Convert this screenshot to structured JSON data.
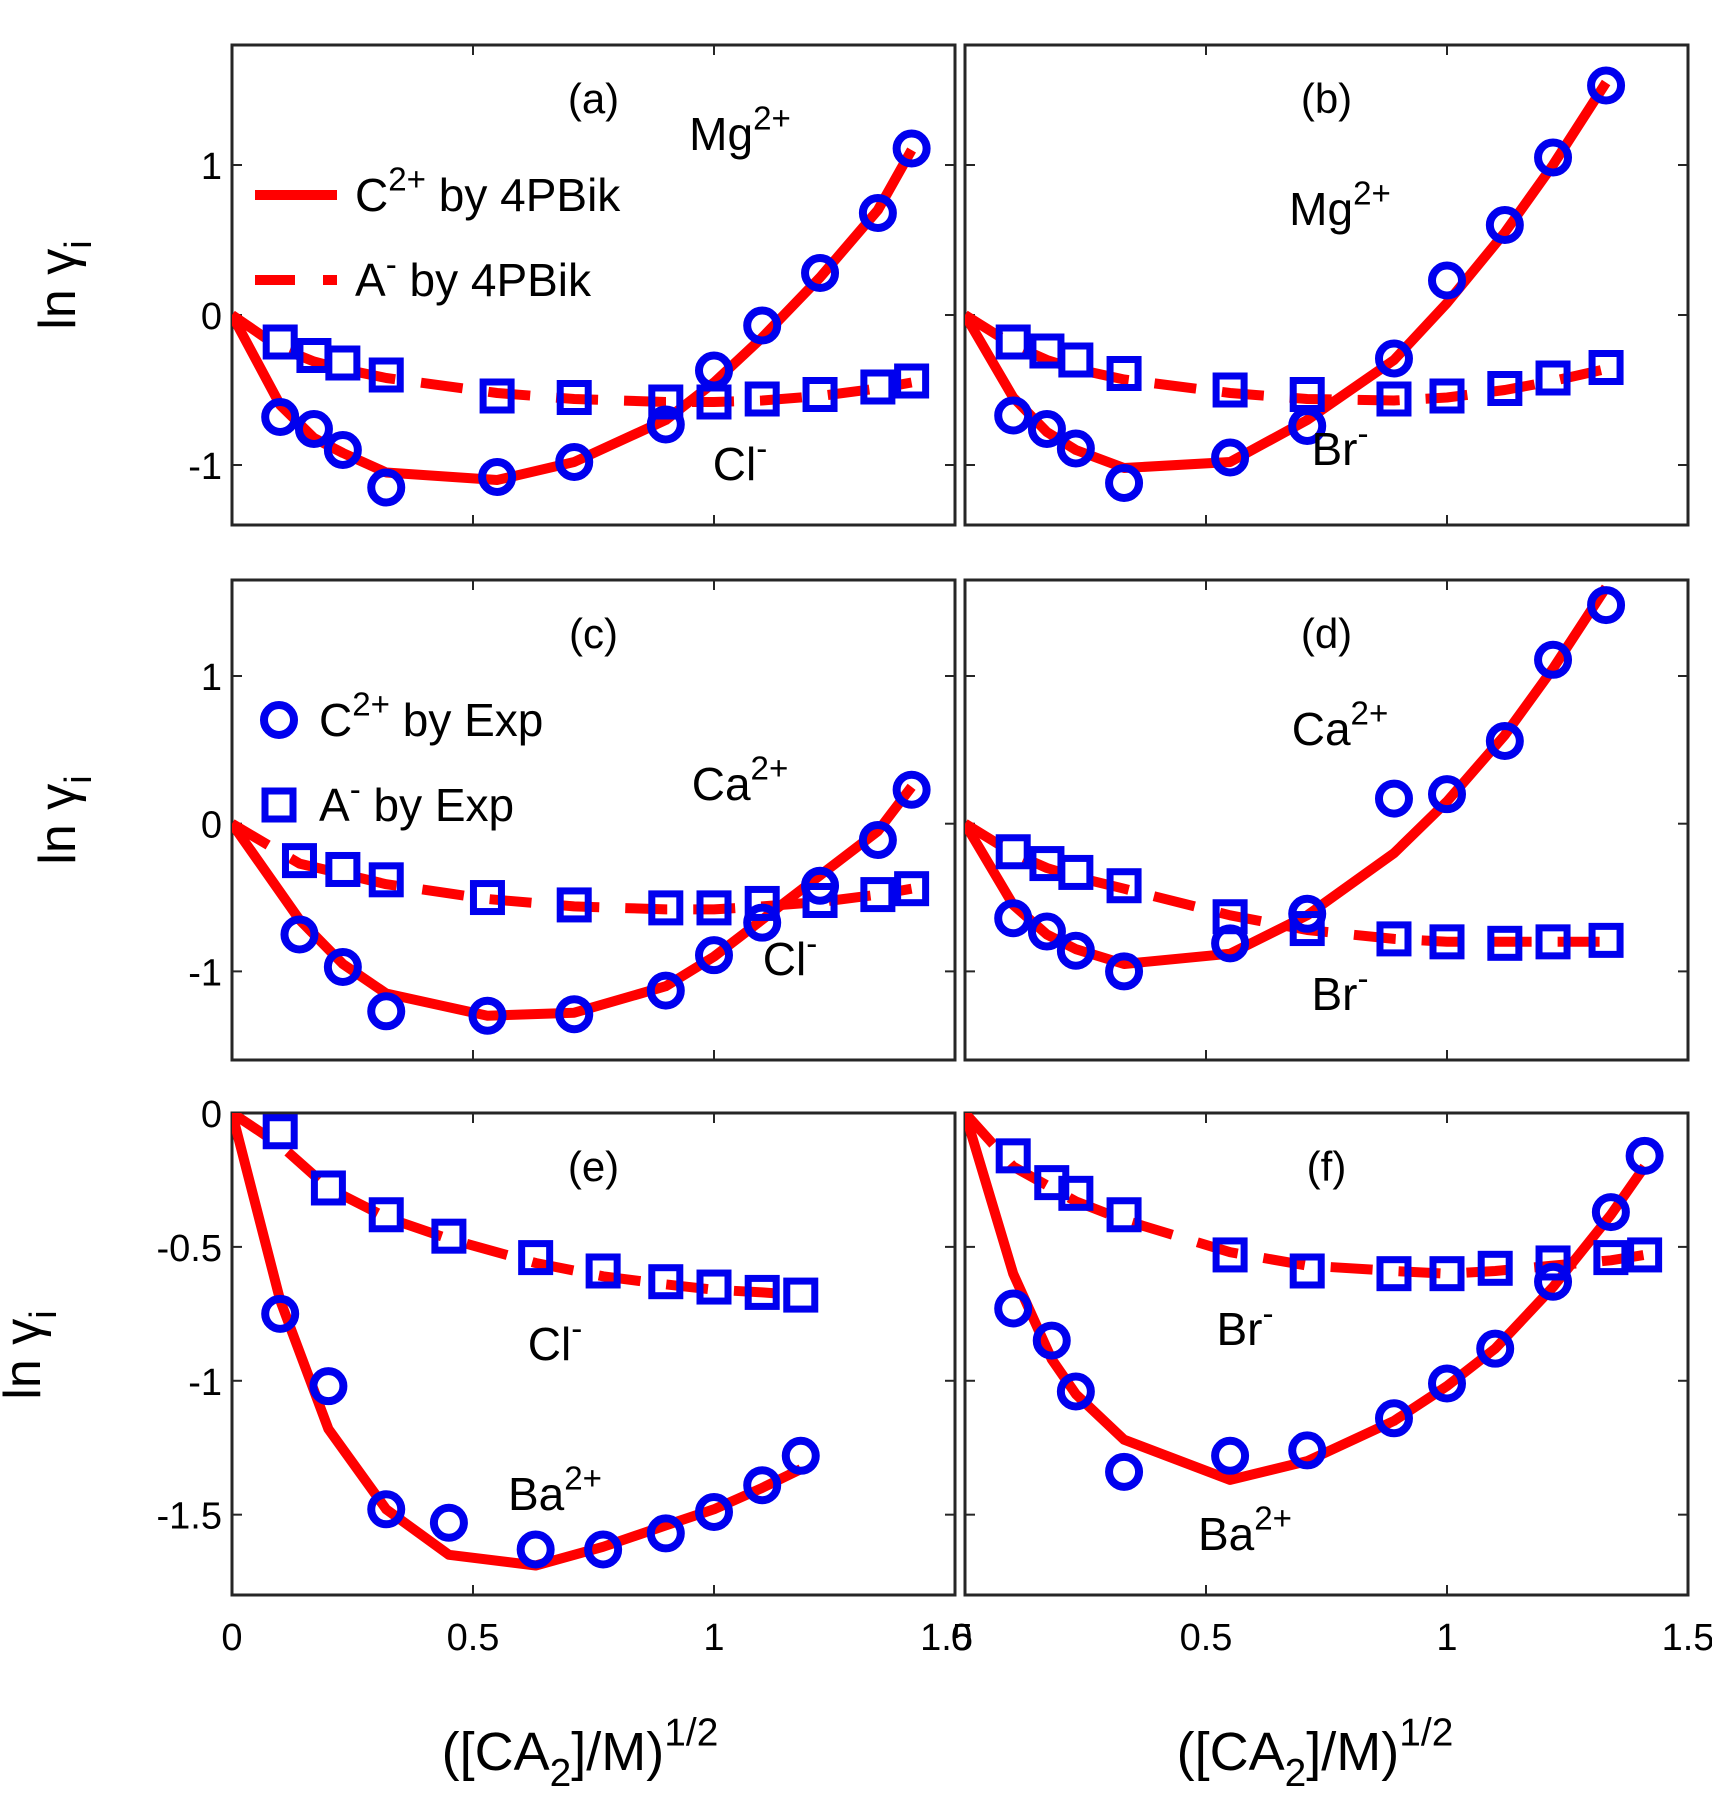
{
  "figure": {
    "xlabel": "([CA",
    "xlabel_sub": "2",
    "xlabel_tail": "]/M)",
    "xlabel_sup": "1/2",
    "ylabel": "ln γ",
    "ylabel_sub": "i"
  },
  "legends": {
    "model": [
      {
        "ion": "C",
        "charge": "2+",
        "label": " by 4PBik",
        "style": "solid"
      },
      {
        "ion": "A",
        "charge": "-",
        "label": " by 4PBik",
        "style": "dashed"
      }
    ],
    "exp": [
      {
        "ion": "C",
        "charge": "2+",
        "label": " by Exp",
        "marker": "circle"
      },
      {
        "ion": "A",
        "charge": "-",
        "label": " by Exp",
        "marker": "square"
      }
    ]
  },
  "colors": {
    "model_line": "#ff0000",
    "exp_marker": "#0000ee",
    "frame": "#262626"
  },
  "chart_data": [
    {
      "panel": "(a)",
      "type": "line+scatter",
      "xlim": [
        0,
        1.5
      ],
      "ylim": [
        -1.4,
        1.8
      ],
      "yticks": [
        "-1",
        "0",
        "1"
      ],
      "yticks_values": [
        -1,
        0,
        1
      ],
      "xticks": [],
      "legend": "model",
      "cation_label": {
        "ion": "Mg",
        "charge": "2+"
      },
      "anion_label": {
        "ion": "Cl",
        "charge": "-"
      },
      "cation_model": {
        "x": [
          0,
          0.1,
          0.17,
          0.23,
          0.32,
          0.55,
          0.71,
          0.9,
          1.0,
          1.1,
          1.22,
          1.34,
          1.41
        ],
        "y": [
          0,
          -0.6,
          -0.82,
          -0.92,
          -1.05,
          -1.1,
          -0.98,
          -0.7,
          -0.45,
          -0.15,
          0.25,
          0.7,
          1.1
        ]
      },
      "anion_model": {
        "x": [
          0,
          0.1,
          0.17,
          0.23,
          0.32,
          0.55,
          0.71,
          0.9,
          1.0,
          1.1,
          1.22,
          1.34,
          1.41
        ],
        "y": [
          0,
          -0.22,
          -0.31,
          -0.36,
          -0.42,
          -0.52,
          -0.56,
          -0.58,
          -0.58,
          -0.57,
          -0.54,
          -0.49,
          -0.45
        ]
      },
      "cation_exp": {
        "x": [
          0.1,
          0.17,
          0.23,
          0.32,
          0.55,
          0.71,
          0.9,
          1.0,
          1.1,
          1.22,
          1.34,
          1.41
        ],
        "y": [
          -0.68,
          -0.76,
          -0.9,
          -1.15,
          -1.08,
          -0.98,
          -0.73,
          -0.37,
          -0.07,
          0.28,
          0.68,
          1.11
        ]
      },
      "anion_exp": {
        "x": [
          0.1,
          0.17,
          0.23,
          0.32,
          0.55,
          0.71,
          0.9,
          1.0,
          1.1,
          1.22,
          1.34,
          1.41
        ],
        "y": [
          -0.18,
          -0.27,
          -0.32,
          -0.4,
          -0.54,
          -0.55,
          -0.58,
          -0.58,
          -0.56,
          -0.53,
          -0.48,
          -0.44
        ]
      }
    },
    {
      "panel": "(b)",
      "type": "line+scatter",
      "xlim": [
        0,
        1.5
      ],
      "ylim": [
        -1.4,
        1.8
      ],
      "yticks": [],
      "yticks_values": [
        -1,
        0,
        1
      ],
      "xticks": [],
      "legend": null,
      "cation_label": {
        "ion": "Mg",
        "charge": "2+"
      },
      "anion_label": {
        "ion": "Br",
        "charge": "-"
      },
      "cation_model": {
        "x": [
          0,
          0.1,
          0.17,
          0.23,
          0.33,
          0.55,
          0.71,
          0.89,
          1.0,
          1.12,
          1.22,
          1.33
        ],
        "y": [
          0,
          -0.55,
          -0.78,
          -0.9,
          -1.02,
          -0.98,
          -0.7,
          -0.3,
          0.08,
          0.55,
          1.0,
          1.55
        ]
      },
      "anion_model": {
        "x": [
          0,
          0.1,
          0.17,
          0.23,
          0.33,
          0.55,
          0.71,
          0.89,
          1.0,
          1.12,
          1.22,
          1.33
        ],
        "y": [
          0,
          -0.2,
          -0.3,
          -0.36,
          -0.43,
          -0.52,
          -0.56,
          -0.57,
          -0.55,
          -0.5,
          -0.44,
          -0.36
        ]
      },
      "cation_exp": {
        "x": [
          0.1,
          0.17,
          0.23,
          0.33,
          0.55,
          0.71,
          0.89,
          1.0,
          1.12,
          1.22,
          1.33
        ],
        "y": [
          -0.67,
          -0.76,
          -0.89,
          -1.12,
          -0.95,
          -0.74,
          -0.29,
          0.23,
          0.6,
          1.05,
          1.53
        ]
      },
      "anion_exp": {
        "x": [
          0.1,
          0.17,
          0.23,
          0.33,
          0.55,
          0.71,
          0.89,
          1.0,
          1.12,
          1.22,
          1.33
        ],
        "y": [
          -0.18,
          -0.24,
          -0.3,
          -0.39,
          -0.5,
          -0.53,
          -0.56,
          -0.54,
          -0.49,
          -0.42,
          -0.35
        ]
      }
    },
    {
      "panel": "(c)",
      "type": "line+scatter",
      "xlim": [
        0,
        1.5
      ],
      "ylim": [
        -1.6,
        1.65
      ],
      "yticks": [
        "-1",
        "0",
        "1"
      ],
      "yticks_values": [
        -1,
        0,
        1
      ],
      "xticks": [],
      "legend": "exp",
      "cation_label": {
        "ion": "Ca",
        "charge": "2+"
      },
      "anion_label": {
        "ion": "Cl",
        "charge": "-"
      },
      "cation_model": {
        "x": [
          0,
          0.14,
          0.23,
          0.32,
          0.53,
          0.71,
          0.9,
          1.0,
          1.1,
          1.22,
          1.34,
          1.41
        ],
        "y": [
          0,
          -0.65,
          -0.95,
          -1.15,
          -1.3,
          -1.28,
          -1.1,
          -0.9,
          -0.65,
          -0.35,
          -0.05,
          0.25
        ]
      },
      "anion_model": {
        "x": [
          0,
          0.14,
          0.23,
          0.32,
          0.53,
          0.71,
          0.9,
          1.0,
          1.1,
          1.22,
          1.34,
          1.41
        ],
        "y": [
          0,
          -0.27,
          -0.34,
          -0.41,
          -0.51,
          -0.56,
          -0.58,
          -0.58,
          -0.56,
          -0.53,
          -0.48,
          -0.44
        ]
      },
      "cation_exp": {
        "x": [
          0.14,
          0.23,
          0.32,
          0.53,
          0.71,
          0.9,
          1.0,
          1.1,
          1.22,
          1.34,
          1.41
        ],
        "y": [
          -0.75,
          -0.97,
          -1.27,
          -1.3,
          -1.29,
          -1.13,
          -0.89,
          -0.67,
          -0.42,
          -0.11,
          0.23
        ]
      },
      "anion_exp": {
        "x": [
          0.14,
          0.23,
          0.32,
          0.53,
          0.71,
          0.9,
          1.0,
          1.1,
          1.22,
          1.34,
          1.41
        ],
        "y": [
          -0.25,
          -0.31,
          -0.38,
          -0.5,
          -0.55,
          -0.57,
          -0.57,
          -0.54,
          -0.52,
          -0.48,
          -0.44
        ]
      }
    },
    {
      "panel": "(d)",
      "type": "line+scatter",
      "xlim": [
        0,
        1.5
      ],
      "ylim": [
        -1.6,
        1.65
      ],
      "yticks": [],
      "yticks_values": [
        -1,
        0,
        1
      ],
      "xticks": [],
      "legend": null,
      "cation_label": {
        "ion": "Ca",
        "charge": "2+"
      },
      "anion_label": {
        "ion": "Br",
        "charge": "-"
      },
      "cation_model": {
        "x": [
          0,
          0.1,
          0.17,
          0.23,
          0.33,
          0.55,
          0.71,
          0.89,
          1.0,
          1.12,
          1.22,
          1.33
        ],
        "y": [
          0,
          -0.55,
          -0.75,
          -0.85,
          -0.95,
          -0.88,
          -0.62,
          -0.2,
          0.15,
          0.6,
          1.05,
          1.6
        ]
      },
      "anion_model": {
        "x": [
          0,
          0.1,
          0.17,
          0.23,
          0.33,
          0.55,
          0.71,
          0.89,
          1.0,
          1.12,
          1.22,
          1.33
        ],
        "y": [
          0,
          -0.2,
          -0.3,
          -0.36,
          -0.44,
          -0.62,
          -0.72,
          -0.78,
          -0.8,
          -0.8,
          -0.8,
          -0.8
        ]
      },
      "cation_exp": {
        "x": [
          0.1,
          0.17,
          0.23,
          0.33,
          0.55,
          0.71,
          0.89,
          1.0,
          1.12,
          1.22,
          1.33
        ],
        "y": [
          -0.64,
          -0.73,
          -0.86,
          -1.0,
          -0.81,
          -0.61,
          0.17,
          0.2,
          0.56,
          1.11,
          1.48
        ]
      },
      "anion_exp": {
        "x": [
          0.1,
          0.17,
          0.23,
          0.33,
          0.55,
          0.71,
          0.89,
          1.0,
          1.12,
          1.22,
          1.33
        ],
        "y": [
          -0.19,
          -0.27,
          -0.33,
          -0.42,
          -0.63,
          -0.71,
          -0.78,
          -0.8,
          -0.81,
          -0.8,
          -0.79
        ]
      }
    },
    {
      "panel": "(e)",
      "type": "line+scatter",
      "xlim": [
        0,
        1.5
      ],
      "ylim": [
        -1.8,
        0
      ],
      "yticks": [
        "0",
        "-0.5",
        "-1",
        "-1.5"
      ],
      "yticks_values": [
        0,
        -0.5,
        -1,
        -1.5
      ],
      "xticks": [
        "0",
        "0.5",
        "1",
        "1.5"
      ],
      "xticks_values": [
        0,
        0.5,
        1,
        1.5
      ],
      "legend": null,
      "cation_label": {
        "ion": "Ba",
        "charge": "2+"
      },
      "anion_label": {
        "ion": "Cl",
        "charge": "-"
      },
      "cation_model": {
        "x": [
          0,
          0.1,
          0.2,
          0.32,
          0.45,
          0.63,
          0.77,
          0.9,
          1.0,
          1.1,
          1.18
        ],
        "y": [
          0,
          -0.7,
          -1.18,
          -1.48,
          -1.65,
          -1.69,
          -1.62,
          -1.54,
          -1.48,
          -1.4,
          -1.33
        ]
      },
      "anion_model": {
        "x": [
          0,
          0.1,
          0.2,
          0.32,
          0.45,
          0.63,
          0.77,
          0.9,
          1.0,
          1.1,
          1.18
        ],
        "y": [
          0,
          -0.12,
          -0.28,
          -0.39,
          -0.47,
          -0.56,
          -0.61,
          -0.64,
          -0.66,
          -0.67,
          -0.68
        ]
      },
      "cation_exp": {
        "x": [
          0.1,
          0.2,
          0.32,
          0.45,
          0.63,
          0.77,
          0.9,
          1.0,
          1.1,
          1.18
        ],
        "y": [
          -0.75,
          -1.02,
          -1.48,
          -1.53,
          -1.63,
          -1.63,
          -1.57,
          -1.49,
          -1.39,
          -1.28
        ]
      },
      "anion_exp": {
        "x": [
          0.1,
          0.2,
          0.32,
          0.45,
          0.63,
          0.77,
          0.9,
          1.0,
          1.1,
          1.18
        ],
        "y": [
          -0.07,
          -0.28,
          -0.38,
          -0.46,
          -0.54,
          -0.59,
          -0.63,
          -0.65,
          -0.67,
          -0.68
        ]
      }
    },
    {
      "panel": "(f)",
      "type": "line+scatter",
      "xlim": [
        0,
        1.5
      ],
      "ylim": [
        -1.8,
        0
      ],
      "yticks": [],
      "yticks_values": [
        0,
        -0.5,
        -1,
        -1.5
      ],
      "xticks": [
        "0",
        "0.5",
        "1",
        "1.5"
      ],
      "xticks_values": [
        0,
        0.5,
        1,
        1.5
      ],
      "legend": null,
      "cation_label": {
        "ion": "Ba",
        "charge": "2+"
      },
      "anion_label": {
        "ion": "Br",
        "charge": "-"
      },
      "cation_model": {
        "x": [
          0,
          0.1,
          0.18,
          0.23,
          0.33,
          0.55,
          0.71,
          0.89,
          1.0,
          1.1,
          1.22,
          1.34,
          1.41
        ],
        "y": [
          0,
          -0.6,
          -0.92,
          -1.05,
          -1.22,
          -1.37,
          -1.3,
          -1.15,
          -1.02,
          -0.88,
          -0.65,
          -0.38,
          -0.2
        ]
      },
      "anion_model": {
        "x": [
          0,
          0.1,
          0.18,
          0.23,
          0.33,
          0.55,
          0.71,
          0.89,
          1.0,
          1.1,
          1.22,
          1.34,
          1.41
        ],
        "y": [
          0,
          -0.2,
          -0.28,
          -0.33,
          -0.4,
          -0.52,
          -0.57,
          -0.59,
          -0.6,
          -0.59,
          -0.57,
          -0.55,
          -0.53
        ]
      },
      "cation_exp": {
        "x": [
          0.1,
          0.18,
          0.23,
          0.33,
          0.55,
          0.71,
          0.89,
          1.0,
          1.1,
          1.22,
          1.34,
          1.41
        ],
        "y": [
          -0.73,
          -0.85,
          -1.04,
          -1.34,
          -1.28,
          -1.26,
          -1.14,
          -1.01,
          -0.88,
          -0.63,
          -0.37,
          -0.16
        ]
      },
      "anion_exp": {
        "x": [
          0.1,
          0.18,
          0.23,
          0.33,
          0.55,
          0.71,
          0.89,
          1.0,
          1.1,
          1.22,
          1.34,
          1.41
        ],
        "y": [
          -0.16,
          -0.26,
          -0.3,
          -0.38,
          -0.53,
          -0.59,
          -0.6,
          -0.6,
          -0.58,
          -0.56,
          -0.54,
          -0.53
        ]
      }
    }
  ]
}
